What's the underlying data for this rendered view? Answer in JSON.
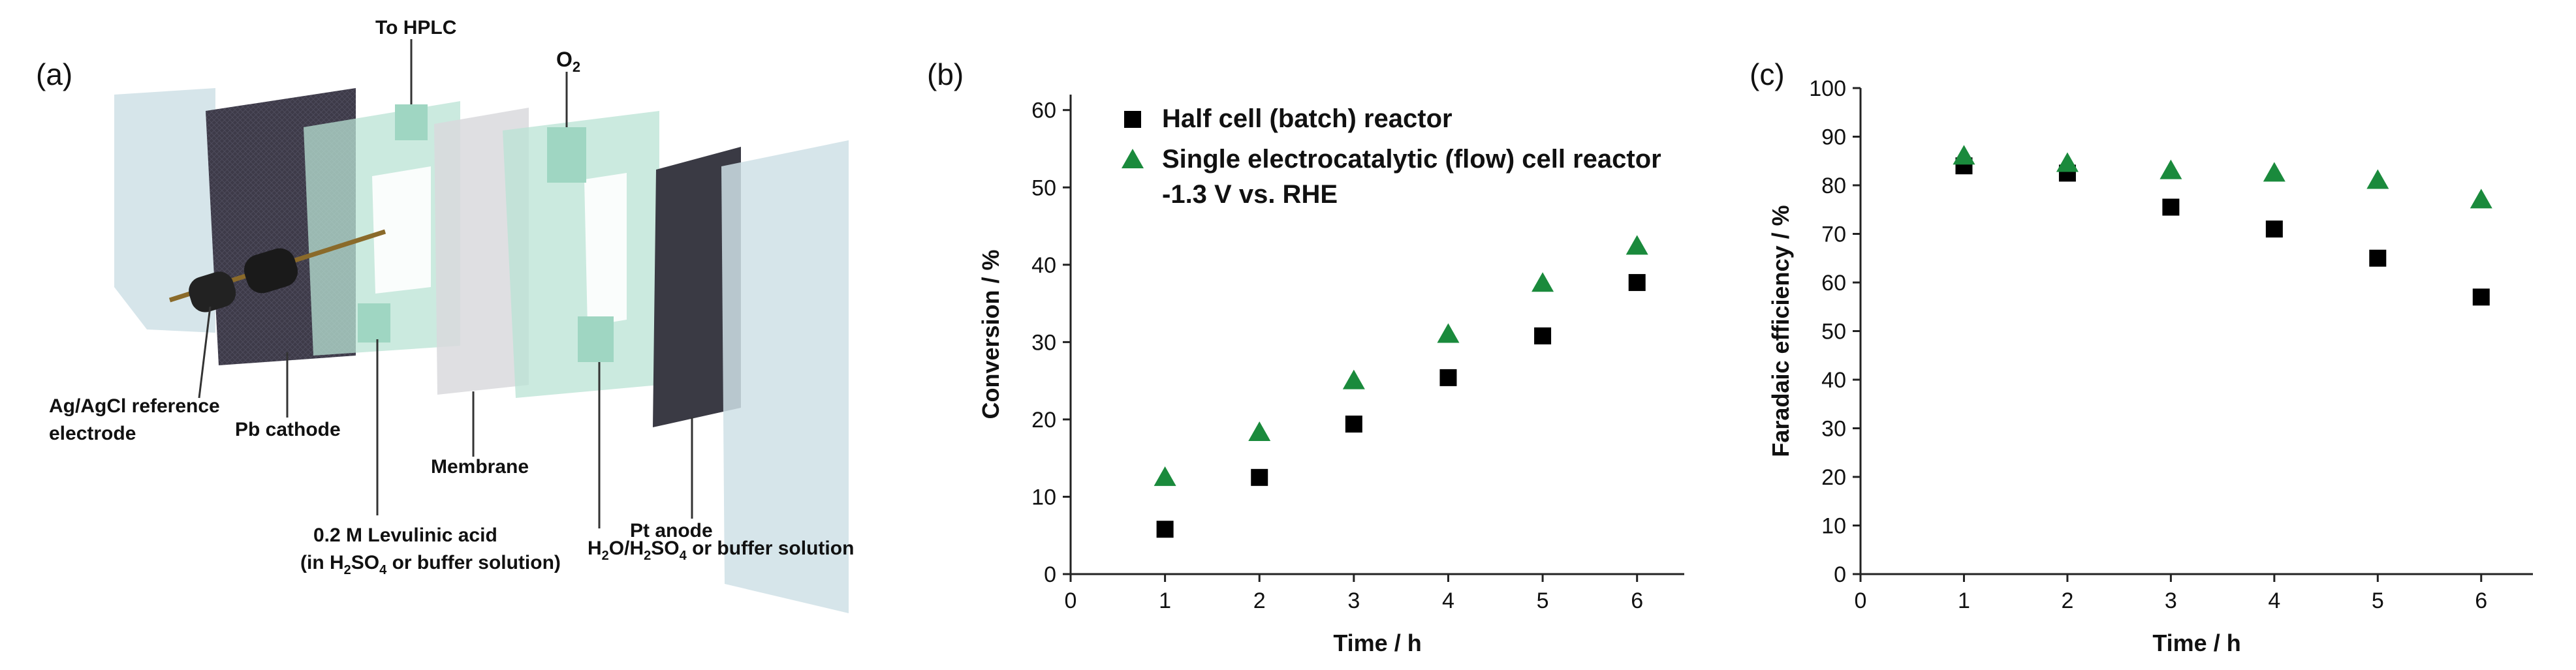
{
  "panel_a": {
    "letter": "(a)",
    "labels": {
      "to_hplc": "To HPLC",
      "o2": "O",
      "o2_sub": "2",
      "ref_line1": "Ag/AgCl reference",
      "ref_line2": "electrode",
      "pb_cathode": "Pb cathode",
      "membrane": "Membrane",
      "pt_anode": "Pt anode",
      "lev_line1": "0.2 M Levulinic acid",
      "lev_line2_pre": "(in H",
      "lev_line2_sub1": "2",
      "lev_line2_mid": "SO",
      "lev_line2_sub2": "4",
      "lev_line2_post": "  or buffer solution)",
      "anolyte_pre": "H",
      "anolyte_sub1": "2",
      "anolyte_mid1": "O/H",
      "anolyte_sub2": "2",
      "anolyte_mid2": "SO",
      "anolyte_sub3": "4",
      "anolyte_post": " or buffer solution"
    },
    "colors": {
      "glass": "#cfe0e6",
      "frame": "#b9e3d4",
      "cathode": "#3d3a48",
      "anode": "#3a3a44",
      "membrane": "#d9d9dd"
    }
  },
  "chart_data": [
    {
      "panel": "(b)",
      "type": "scatter",
      "xlabel": "Time / h",
      "ylabel": "Conversion / %",
      "xlim": [
        0,
        6.5
      ],
      "ylim": [
        0,
        62
      ],
      "xticks": [
        0,
        1,
        2,
        3,
        4,
        5,
        6
      ],
      "yticks": [
        0,
        10,
        20,
        30,
        40,
        50,
        60
      ],
      "legend_note": "-1.3 V vs. RHE",
      "series": [
        {
          "name": "Half cell (batch) reactor",
          "marker": "square",
          "color": "#000000",
          "x": [
            1,
            2,
            3,
            4,
            5,
            6
          ],
          "y": [
            5.8,
            12.5,
            19.4,
            25.4,
            30.8,
            37.7
          ]
        },
        {
          "name": "Single electrocatalytic (flow) cell reactor",
          "marker": "triangle",
          "color": "#1a8a3c",
          "x": [
            1,
            2,
            3,
            4,
            5,
            6
          ],
          "y": [
            12.5,
            18.3,
            25.0,
            31.0,
            37.6,
            42.4
          ]
        }
      ]
    },
    {
      "panel": "(c)",
      "type": "scatter",
      "xlabel": "Time / h",
      "ylabel": "Faradaic efficiency / %",
      "xlim": [
        0,
        6.5
      ],
      "ylim": [
        0,
        100
      ],
      "xticks": [
        0,
        1,
        2,
        3,
        4,
        5,
        6
      ],
      "yticks": [
        0,
        10,
        20,
        30,
        40,
        50,
        60,
        70,
        80,
        90,
        100
      ],
      "series": [
        {
          "name": "Half cell (batch) reactor",
          "marker": "square",
          "color": "#000000",
          "x": [
            1,
            2,
            3,
            4,
            5,
            6
          ],
          "y": [
            84.0,
            82.5,
            75.5,
            71.0,
            65.0,
            57.0
          ]
        },
        {
          "name": "Single electrocatalytic (flow) cell reactor",
          "marker": "triangle",
          "color": "#1a8a3c",
          "x": [
            1,
            2,
            3,
            4,
            5,
            6
          ],
          "y": [
            86.0,
            84.5,
            83.0,
            82.5,
            81.0,
            77.0
          ]
        }
      ]
    }
  ]
}
